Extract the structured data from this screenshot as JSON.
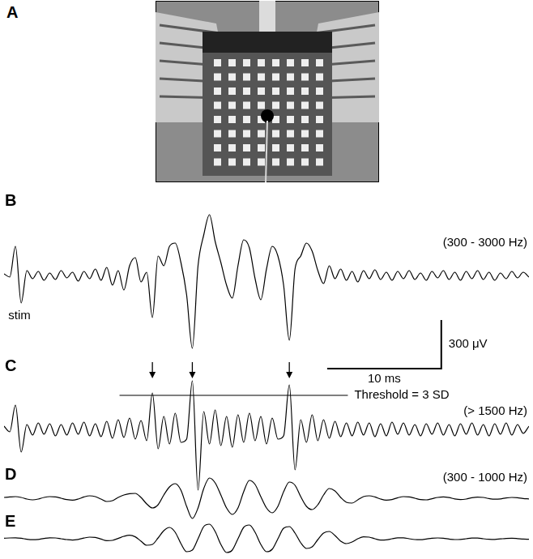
{
  "photo": {
    "panel": "A"
  },
  "chart_data": [
    {
      "panel": "B",
      "type": "line",
      "filter": "(300 - 3000 Hz)",
      "annotation": "stim",
      "x": [
        0,
        0.5,
        1,
        1.5,
        2,
        2.5,
        3,
        3.5,
        4,
        4.5,
        5,
        5.5,
        6,
        6.5,
        7,
        7.5,
        8,
        8.5,
        9,
        9.5,
        10,
        10.5,
        11,
        11.5,
        12,
        12.5,
        13,
        13.5,
        14,
        14.5,
        15,
        15.5,
        16,
        16.5,
        17,
        17.5,
        18,
        18.5,
        19,
        19.5,
        20,
        20.5,
        21,
        21.5,
        22,
        22.5,
        23,
        23.5,
        24,
        24.5,
        25,
        25.5,
        26,
        26.5,
        27,
        27.5,
        28,
        28.5,
        29,
        29.5,
        30,
        30.5,
        31,
        31.5,
        32,
        32.5,
        33,
        33.5,
        34,
        34.5,
        35,
        35.5,
        36,
        36.5,
        37,
        37.5,
        38,
        38.5,
        39,
        39.5,
        40,
        40.5,
        41,
        41.5,
        42,
        42.5,
        43,
        43.5,
        44,
        44.5,
        45,
        45.5,
        46
      ],
      "values": [
        10,
        -10,
        180,
        -170,
        30,
        -20,
        25,
        -30,
        15,
        -25,
        30,
        -15,
        20,
        -35,
        25,
        -20,
        40,
        -30,
        50,
        -60,
        30,
        -90,
        60,
        110,
        -40,
        20,
        -260,
        120,
        60,
        180,
        200,
        80,
        -120,
        -450,
        60,
        250,
        375,
        210,
        80,
        -60,
        -140,
        60,
        220,
        170,
        -20,
        -150,
        40,
        180,
        120,
        -60,
        -400,
        40,
        120,
        200,
        150,
        30,
        -50,
        60,
        -20,
        40,
        -30,
        25,
        -40,
        30,
        -20,
        35,
        -25,
        20,
        -30,
        25,
        -20,
        30,
        -25,
        15,
        -30,
        25,
        -15,
        30,
        -25,
        20,
        -30,
        25,
        -20,
        30,
        -25,
        20,
        -30,
        15,
        -20,
        25,
        -15,
        20,
        -10
      ],
      "color": "#000000",
      "xlim": [
        0,
        46
      ],
      "ylim": [
        -800,
        500
      ],
      "grid": false,
      "tick_labels": false,
      "scale_bar": {
        "x": 10,
        "x_label": "10 ms",
        "y": 300,
        "y_label": "300 μV"
      }
    },
    {
      "panel": "C",
      "type": "line",
      "filter": "(> 1500 Hz)",
      "x": [
        0,
        0.5,
        1,
        1.5,
        2,
        2.5,
        3,
        3.5,
        4,
        4.5,
        5,
        5.5,
        6,
        6.5,
        7,
        7.5,
        8,
        8.5,
        9,
        9.5,
        10,
        10.5,
        11,
        11.5,
        12,
        12.5,
        13,
        13.5,
        14,
        14.5,
        15,
        15.5,
        16,
        16.5,
        17,
        17.5,
        18,
        18.5,
        19,
        19.5,
        20,
        20.5,
        21,
        21.5,
        22,
        22.5,
        23,
        23.5,
        24,
        24.5,
        25,
        25.5,
        26,
        26.5,
        27,
        27.5,
        28,
        28.5,
        29,
        29.5,
        30,
        30.5,
        31,
        31.5,
        32,
        32.5,
        33,
        33.5,
        34,
        34.5,
        35,
        35.5,
        36,
        36.5,
        37,
        37.5,
        38,
        38.5,
        39,
        39.5,
        40,
        40.5,
        41,
        41.5,
        42,
        42.5,
        43,
        43.5,
        44,
        44.5,
        45,
        45.5,
        46
      ],
      "values": [
        20,
        -15,
        150,
        -140,
        30,
        -35,
        40,
        -30,
        35,
        -40,
        30,
        -35,
        40,
        -30,
        45,
        -40,
        35,
        -45,
        50,
        -55,
        60,
        -50,
        70,
        -60,
        55,
        -70,
        225,
        -120,
        80,
        -90,
        100,
        -80,
        -60,
        300,
        -375,
        110,
        -90,
        120,
        -100,
        80,
        -110,
        90,
        -80,
        100,
        -70,
        80,
        -90,
        70,
        -60,
        -40,
        275,
        -250,
        60,
        -80,
        90,
        -70,
        60,
        -55,
        50,
        -45,
        40,
        -40,
        45,
        -35,
        40,
        -45,
        35,
        -40,
        45,
        -30,
        40,
        -35,
        30,
        -40,
        35,
        -30,
        40,
        -35,
        30,
        -40,
        35,
        -30,
        40,
        -35,
        30,
        -40,
        35,
        -30,
        40,
        -35,
        30,
        -25,
        20
      ],
      "color": "#000000",
      "xlim": [
        0,
        46
      ],
      "ylim": [
        -450,
        450
      ],
      "grid": false,
      "tick_labels": false,
      "threshold": {
        "value": 210,
        "label": "Threshold = 3 SD"
      },
      "spike_times": [
        13,
        16.5,
        25
      ]
    },
    {
      "panel": "D",
      "type": "line",
      "filter": "(300 - 1000 Hz)",
      "x": [
        0,
        0.5,
        1,
        1.5,
        2,
        2.5,
        3,
        3.5,
        4,
        4.5,
        5,
        5.5,
        6,
        6.5,
        7,
        7.5,
        8,
        8.5,
        9,
        9.5,
        10,
        10.5,
        11,
        11.5,
        12,
        12.5,
        13,
        13.5,
        14,
        14.5,
        15,
        15.5,
        16,
        16.5,
        17,
        17.5,
        18,
        18.5,
        19,
        19.5,
        20,
        20.5,
        21,
        21.5,
        22,
        22.5,
        23,
        23.5,
        24,
        24.5,
        25,
        25.5,
        26,
        26.5,
        27,
        27.5,
        28,
        28.5,
        29,
        29.5,
        30,
        30.5,
        31,
        31.5,
        32,
        32.5,
        33,
        33.5,
        34,
        34.5,
        35,
        35.5,
        36,
        36.5,
        37,
        37.5,
        38,
        38.5,
        39,
        39.5,
        40,
        40.5,
        41,
        41.5,
        42,
        42.5,
        43,
        43.5,
        44,
        44.5,
        45,
        45.5,
        46
      ],
      "values": [
        5,
        8,
        10,
        5,
        -5,
        -10,
        -5,
        5,
        10,
        8,
        0,
        -8,
        -12,
        -5,
        8,
        15,
        10,
        -5,
        -20,
        -15,
        5,
        20,
        28,
        30,
        5,
        -35,
        -60,
        -40,
        20,
        70,
        90,
        50,
        -50,
        -125,
        -60,
        60,
        125,
        95,
        20,
        -60,
        -100,
        -60,
        40,
        110,
        85,
        10,
        -60,
        -90,
        -50,
        40,
        100,
        80,
        10,
        -50,
        -70,
        -40,
        20,
        60,
        45,
        5,
        -25,
        -30,
        -10,
        10,
        15,
        8,
        -5,
        -12,
        -8,
        3,
        10,
        8,
        0,
        -8,
        -10,
        -3,
        5,
        8,
        4,
        -4,
        -8,
        -5,
        3,
        7,
        5,
        -2,
        -6,
        -4,
        2,
        5,
        3,
        -2,
        -4
      ],
      "color": "#000000",
      "xlim": [
        0,
        46
      ],
      "ylim": [
        -150,
        175
      ],
      "grid": false,
      "tick_labels": false
    },
    {
      "panel": "E",
      "type": "line",
      "x": [
        0,
        0.5,
        1,
        1.5,
        2,
        2.5,
        3,
        3.5,
        4,
        4.5,
        5,
        5.5,
        6,
        6.5,
        7,
        7.5,
        8,
        8.5,
        9,
        9.5,
        10,
        10.5,
        11,
        11.5,
        12,
        12.5,
        13,
        13.5,
        14,
        14.5,
        15,
        15.5,
        16,
        16.5,
        17,
        17.5,
        18,
        18.5,
        19,
        19.5,
        20,
        20.5,
        21,
        21.5,
        22,
        22.5,
        23,
        23.5,
        24,
        24.5,
        25,
        25.5,
        26,
        26.5,
        27,
        27.5,
        28,
        28.5,
        29,
        29.5,
        30,
        30.5,
        31,
        31.5,
        32,
        32.5,
        33,
        33.5,
        34,
        34.5,
        35,
        35.5,
        36,
        36.5,
        37,
        37.5,
        38,
        38.5,
        39,
        39.5,
        40,
        40.5,
        41,
        41.5,
        42,
        42.5,
        43,
        43.5,
        44,
        44.5,
        45,
        45.5,
        46
      ],
      "values": [
        3,
        5,
        6,
        3,
        -3,
        -6,
        -4,
        2,
        6,
        5,
        0,
        -5,
        -8,
        -4,
        4,
        10,
        8,
        -2,
        -12,
        -10,
        2,
        15,
        22,
        12,
        -15,
        -40,
        -35,
        5,
        50,
        70,
        40,
        -30,
        -80,
        -70,
        0,
        75,
        90,
        45,
        -35,
        -85,
        -70,
        0,
        70,
        85,
        40,
        -35,
        -80,
        -65,
        0,
        65,
        75,
        35,
        -25,
        -60,
        -50,
        -5,
        35,
        45,
        20,
        -15,
        -30,
        -20,
        0,
        12,
        10,
        0,
        -8,
        -7,
        0,
        6,
        6,
        0,
        -5,
        -6,
        -2,
        3,
        5,
        3,
        -2,
        -5,
        -4,
        0,
        4,
        4,
        0,
        -3,
        -4,
        -1,
        2,
        3,
        1,
        -2,
        -3
      ],
      "color": "#000000",
      "xlim": [
        0,
        46
      ],
      "ylim": [
        -110,
        100
      ],
      "grid": false,
      "tick_labels": false
    }
  ]
}
